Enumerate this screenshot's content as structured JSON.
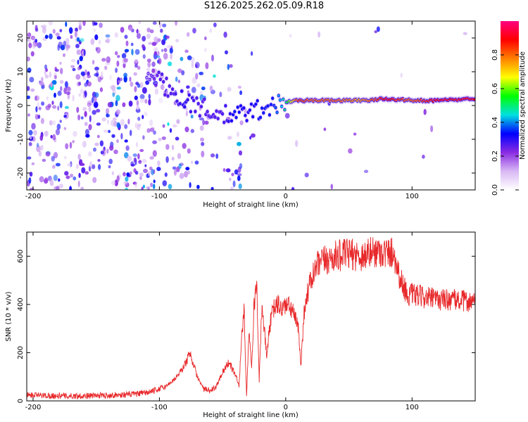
{
  "page": {
    "title": "S126.2025.262.05.09.R18"
  },
  "chart_data": [
    {
      "type": "heatmap",
      "xlabel": "Height of straight line (km)",
      "ylabel": "Frequency (Hz)",
      "xlim": [
        -205,
        150
      ],
      "ylim": [
        -25,
        25
      ],
      "xticks": [
        -200,
        -100,
        0,
        100
      ],
      "yticks": [
        -20,
        -10,
        0,
        10,
        20
      ],
      "colorbar": {
        "label": "Normalized spectral amplitude",
        "range": [
          0.0,
          1.0
        ],
        "ticks": [
          0.0,
          0.2,
          0.4,
          0.6,
          0.8
        ],
        "tick_labels": [
          "0.0",
          "0.2",
          "0.4",
          "0.6",
          "0.8"
        ],
        "colors": [
          "#ffffff",
          "#d8b8f4",
          "#8a2be2",
          "#0000ff",
          "#00e0e0",
          "#00ff00",
          "#ffff00",
          "#ff8000",
          "#ff0000",
          "#ff0080"
        ]
      },
      "ridge": {
        "x": [
          -110,
          -100,
          -90,
          -80,
          -70,
          -60,
          -50,
          -40,
          -30,
          -20,
          -10,
          0,
          10,
          20,
          40,
          60,
          80,
          100,
          120,
          150
        ],
        "y": [
          10,
          7,
          4,
          2,
          0,
          -2,
          -3,
          -3,
          -2,
          -1,
          0,
          1,
          1.5,
          1.5,
          1.5,
          1.5,
          2,
          1.5,
          1.5,
          2
        ],
        "amplitude": [
          0.15,
          0.25,
          0.25,
          0.3,
          0.25,
          0.25,
          0.25,
          0.35,
          0.3,
          0.35,
          0.35,
          0.5,
          0.85,
          0.8,
          0.8,
          0.75,
          0.9,
          0.8,
          0.9,
          0.9
        ]
      }
    },
    {
      "type": "line",
      "xlabel": "Height of straight line (km)",
      "ylabel": "SNR (10 * v/v)",
      "xlim": [
        -205,
        150
      ],
      "ylim": [
        0,
        700
      ],
      "xticks": [
        -200,
        -100,
        0,
        100
      ],
      "yticks": [
        0,
        200,
        400,
        600
      ],
      "series": [
        {
          "name": "SNR",
          "color": "#e8282a",
          "x": [
            -205,
            -190,
            -170,
            -150,
            -130,
            -115,
            -105,
            -95,
            -88,
            -82,
            -78,
            -76,
            -74,
            -70,
            -65,
            -60,
            -55,
            -50,
            -45,
            -42,
            -39,
            -37,
            -35,
            -33,
            -31,
            -29,
            -27,
            -25,
            -23,
            -21,
            -19,
            -17,
            -15,
            -13,
            -10,
            -6,
            -3,
            0,
            5,
            10,
            12,
            15,
            20,
            25,
            30,
            40,
            50,
            60,
            70,
            75,
            80,
            85,
            88,
            91,
            94,
            96,
            100,
            110,
            120,
            130,
            140,
            150
          ],
          "y": [
            25,
            22,
            20,
            22,
            25,
            30,
            40,
            60,
            90,
            130,
            170,
            200,
            170,
            100,
            50,
            40,
            60,
            120,
            160,
            130,
            100,
            60,
            250,
            380,
            20,
            300,
            150,
            400,
            500,
            80,
            380,
            300,
            180,
            300,
            380,
            400,
            380,
            400,
            380,
            300,
            150,
            400,
            500,
            560,
            580,
            600,
            610,
            600,
            620,
            620,
            610,
            620,
            560,
            500,
            470,
            440,
            440,
            430,
            420,
            420,
            415,
            410
          ]
        }
      ]
    }
  ]
}
